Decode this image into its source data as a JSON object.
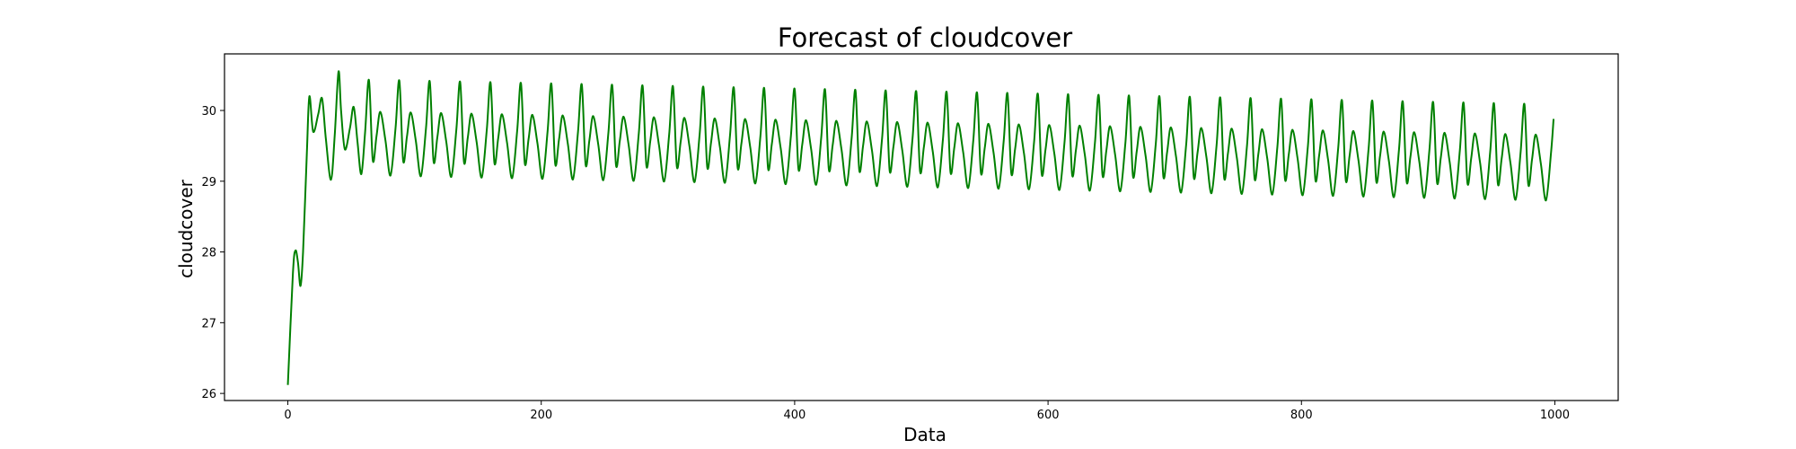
{
  "chart_data": {
    "type": "line",
    "title": "Forecast of cloudcover",
    "xlabel": "Data",
    "ylabel": "cloudcover",
    "xlim": [
      -50,
      1050
    ],
    "ylim": [
      25.9,
      30.8
    ],
    "xticks": [
      0,
      200,
      400,
      600,
      800,
      1000
    ],
    "yticks": [
      26,
      27,
      28,
      29,
      30
    ],
    "grid": false,
    "legend": "none",
    "color": "#008000",
    "series": [
      {
        "x_start": 0,
        "x_end": 999,
        "note_period": 24,
        "points": [
          [
            0,
            26.12
          ],
          [
            4,
            27.7
          ],
          [
            6,
            28.02
          ],
          [
            8,
            27.85
          ],
          [
            10,
            27.52
          ],
          [
            12,
            28.0
          ],
          [
            15,
            29.4
          ],
          [
            17,
            30.2
          ],
          [
            20,
            29.7
          ],
          [
            24,
            29.95
          ],
          [
            27,
            30.17
          ],
          [
            30,
            29.6
          ],
          [
            34,
            29.02
          ],
          [
            37,
            29.65
          ],
          [
            40,
            30.55
          ],
          [
            42,
            30.0
          ],
          [
            45,
            29.45
          ],
          [
            49,
            29.75
          ],
          [
            52,
            30.05
          ],
          [
            55,
            29.55
          ],
          [
            58,
            29.1
          ],
          [
            61,
            29.7
          ],
          [
            64,
            30.43
          ]
        ],
        "cycle": {
          "from_x": 64,
          "period": 24,
          "peak_start": 30.43,
          "peak_end": 30.08,
          "subpeak_start": 29.98,
          "subpeak_end": 29.65,
          "shoulder_start": 29.3,
          "shoulder_end": 28.95,
          "trough_start": 29.08,
          "trough_end": 28.72,
          "end_value": 29.88
        }
      }
    ]
  }
}
